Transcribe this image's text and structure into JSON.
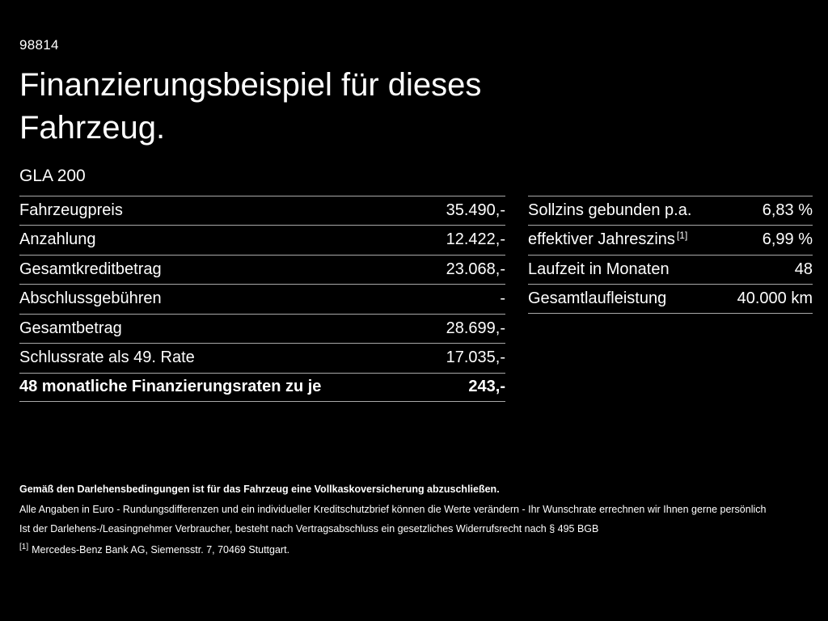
{
  "page": {
    "id": "98814",
    "title_line1": "Finanzierungsbeispiel für dieses",
    "title_line2": "Fahrzeug.",
    "model": "GLA 200"
  },
  "colors": {
    "background": "#000000",
    "text": "#ffffff",
    "divider": "#a8a8a8"
  },
  "left_table": {
    "rows": [
      {
        "label": "Fahrzeugpreis",
        "value": "35.490,-"
      },
      {
        "label": "Anzahlung",
        "value": "12.422,-"
      },
      {
        "label": "Gesamtkreditbetrag",
        "value": "23.068,-"
      },
      {
        "label": "Abschlussgebühren",
        "value": "-"
      },
      {
        "label": "Gesamtbetrag",
        "value": "28.699,-"
      },
      {
        "label": "Schlussrate als 49. Rate",
        "value": "17.035,-"
      },
      {
        "label": "48 monatliche Finanzierungsraten zu je",
        "value": "243,-"
      }
    ]
  },
  "right_table": {
    "rows": [
      {
        "label": "Sollzins gebunden p.a.",
        "value": "6,83 %"
      },
      {
        "label": "effektiver Jahreszins",
        "sup": "[1]",
        "value": "6,99 %"
      },
      {
        "label": "Laufzeit in Monaten",
        "value": "48"
      },
      {
        "label": "Gesamtlaufleistung",
        "value": "40.000 km"
      }
    ]
  },
  "footnotes": {
    "bold_note": "Gemäß den Darlehensbedingungen ist für das Fahrzeug eine Vollkaskoversicherung abzuschließen.",
    "note1": "Alle Angaben in Euro - Rundungsdifferenzen und ein individueller Kreditschutzbrief können die Werte verändern - Ihr Wunschrate errechnen wir Ihnen gerne persönlich",
    "note2": "Ist der Darlehens-/Leasingnehmer Verbraucher, besteht nach Vertragsabschluss ein gesetzliches Widerrufsrecht nach § 495 BGB",
    "ref_marker": "[1]",
    "ref_text": "Mercedes-Benz Bank AG, Siemensstr. 7, 70469 Stuttgart."
  }
}
